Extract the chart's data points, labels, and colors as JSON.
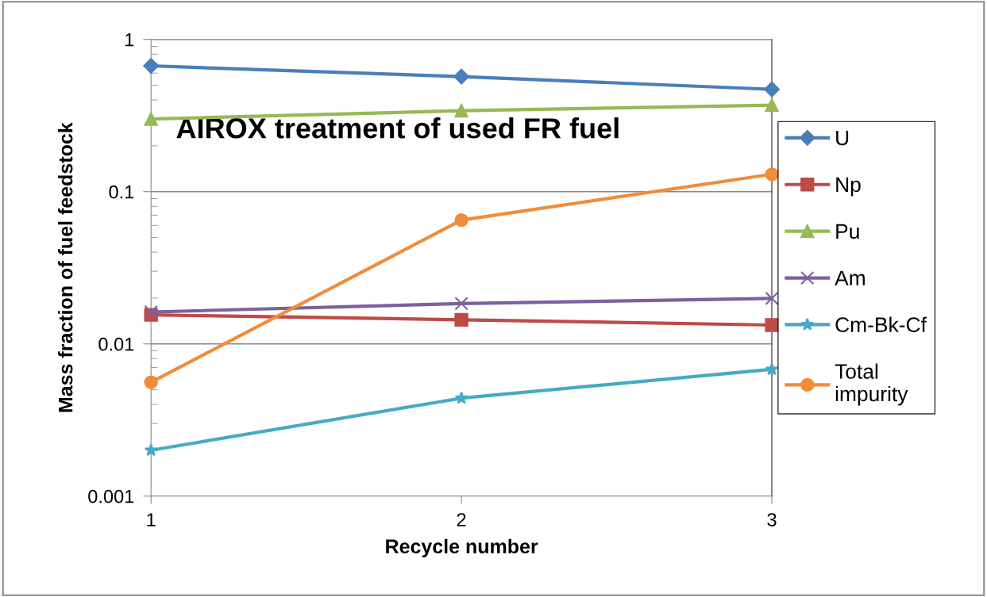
{
  "chart_data": {
    "type": "line",
    "title": "AIROX treatment of used FR fuel",
    "xlabel": "Recycle number",
    "ylabel": "Mass fraction of fuel feedstock",
    "categories": [
      "1",
      "2",
      "3"
    ],
    "series": [
      {
        "name": "U",
        "color": "#4a7ebb",
        "marker": "diamond",
        "values": [
          0.67,
          0.57,
          0.47
        ]
      },
      {
        "name": "Np",
        "color": "#be4b48",
        "marker": "square",
        "values": [
          0.0155,
          0.0144,
          0.0133
        ]
      },
      {
        "name": "Pu",
        "color": "#98b954",
        "marker": "triangle",
        "values": [
          0.3,
          0.34,
          0.37
        ]
      },
      {
        "name": "Am",
        "color": "#7d60a0",
        "marker": "cross",
        "values": [
          0.0162,
          0.0184,
          0.0199
        ]
      },
      {
        "name": "Cm-Bk-Cf",
        "color": "#46aac5",
        "marker": "star",
        "values": [
          0.002,
          0.0044,
          0.0068
        ]
      },
      {
        "name": "Total\nimpurity",
        "color": "#f08c3a",
        "marker": "circle",
        "values": [
          0.0056,
          0.065,
          0.13
        ]
      }
    ],
    "log": "y",
    "ylim": [
      0.001,
      1
    ],
    "yticks": [
      {
        "value": 0.001,
        "label": "0.001"
      },
      {
        "value": 0.01,
        "label": "0.01"
      },
      {
        "value": 0.1,
        "label": "0.1"
      },
      {
        "value": 1,
        "label": "1"
      }
    ],
    "grid": "y",
    "legend": "right",
    "line_style": "solid"
  }
}
